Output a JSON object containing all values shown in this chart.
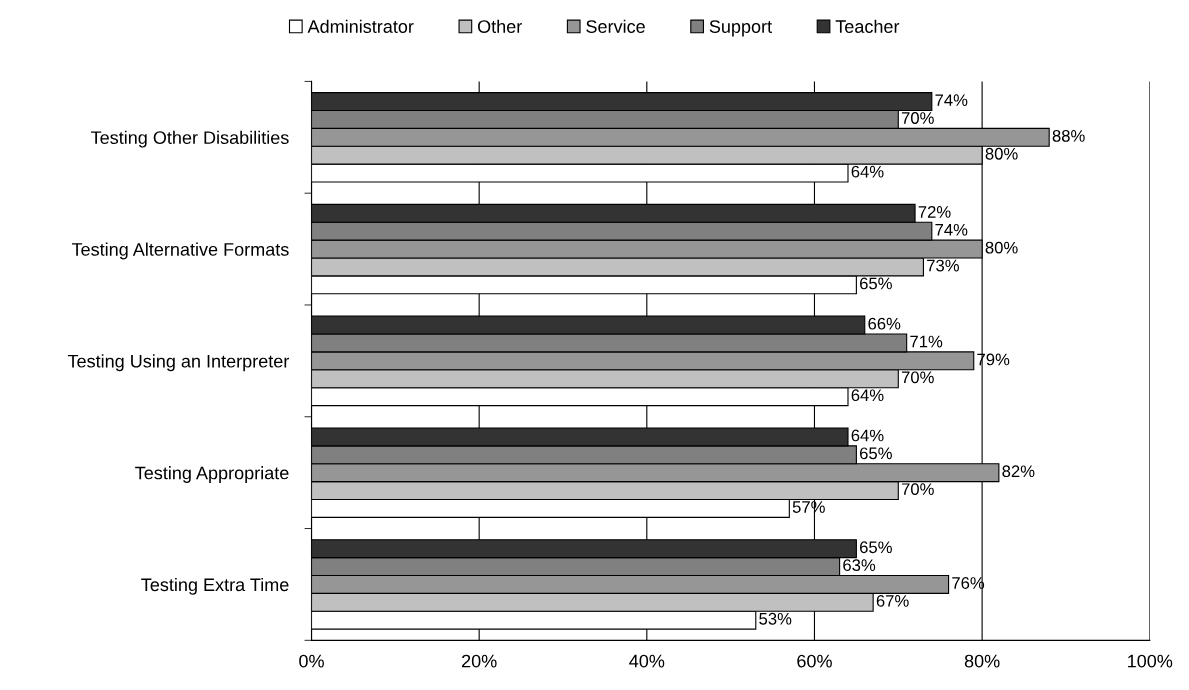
{
  "chart_data": {
    "type": "bar",
    "orientation": "horizontal",
    "categories": [
      "Testing Other Disabilities",
      "Testing Alternative Formats",
      "Testing Using an Interpreter",
      "Testing Appropriate",
      "Testing Extra Time"
    ],
    "series": [
      {
        "name": "Administrator",
        "color": "#ffffff",
        "values": [
          64,
          65,
          64,
          57,
          53
        ],
        "value_labels": [
          "64%",
          "65%",
          "64%",
          "57%",
          "53%"
        ]
      },
      {
        "name": "Other",
        "color": "#c0c0c0",
        "values": [
          80,
          73,
          70,
          70,
          67
        ],
        "value_labels": [
          "80%",
          "73%",
          "70%",
          "70%",
          "67%"
        ]
      },
      {
        "name": "Service",
        "color": "#969696",
        "values": [
          88,
          80,
          79,
          82,
          76
        ],
        "value_labels": [
          "88%",
          "80%",
          "79%",
          "82%",
          "76%"
        ]
      },
      {
        "name": "Support",
        "color": "#808080",
        "values": [
          70,
          74,
          71,
          65,
          63
        ],
        "value_labels": [
          "70%",
          "74%",
          "71%",
          "65%",
          "63%"
        ]
      },
      {
        "name": "Teacher",
        "color": "#333333",
        "values": [
          74,
          72,
          66,
          64,
          65
        ],
        "value_labels": [
          "74%",
          "72%",
          "66%",
          "64%",
          "65%"
        ]
      }
    ],
    "xlim": [
      0,
      100
    ],
    "xticks": [
      {
        "value": 0,
        "label": "0%"
      },
      {
        "value": 20,
        "label": "20%"
      },
      {
        "value": 40,
        "label": "40%"
      },
      {
        "value": 60,
        "label": "60%"
      },
      {
        "value": 80,
        "label": "80%"
      },
      {
        "value": 100,
        "label": "100%"
      }
    ],
    "grid": "x",
    "legend": "top"
  }
}
